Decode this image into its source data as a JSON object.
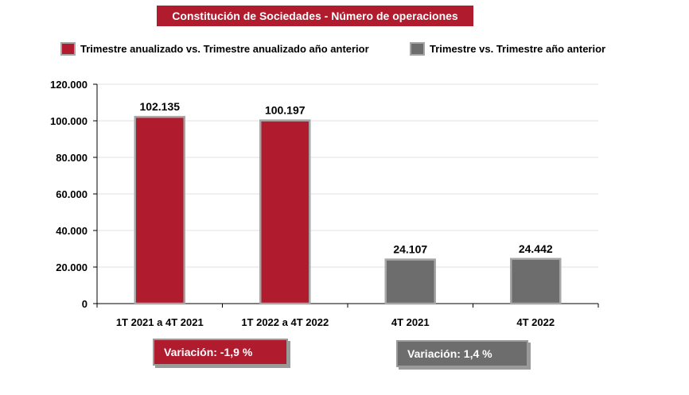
{
  "chart_data": {
    "type": "bar",
    "title": "Constitución de Sociedades - Número de operaciones",
    "categories": [
      "1T 2021 a 4T 2021",
      "1T 2022 a 4T 2022",
      "4T 2021",
      "4T 2022"
    ],
    "values": [
      102135,
      100197,
      24107,
      24442
    ],
    "value_labels": [
      "102.135",
      "100.197",
      "24.107",
      "24.442"
    ],
    "bar_series": [
      "annual",
      "annual",
      "quarter",
      "quarter"
    ],
    "series": [
      {
        "name": "Trimestre anualizado vs. Trimestre anualizado año anterior",
        "color": "#b01c2e"
      },
      {
        "name": "Trimestre vs. Trimestre año anterior",
        "color": "#6d6d6d"
      }
    ],
    "yticks": [
      0,
      20000,
      40000,
      60000,
      80000,
      100000,
      120000
    ],
    "ytick_labels": [
      "0",
      "20.000",
      "40.000",
      "60.000",
      "80.000",
      "100.000",
      "120.000"
    ],
    "ylim": [
      0,
      120000
    ],
    "xlabel": "",
    "ylabel": "",
    "grid": true,
    "legend_position": "top",
    "bar_edge_color": "#a6a6a6",
    "grid_color": "#e2e2e2"
  },
  "legend": {
    "annual_label": "Trimestre anualizado vs. Trimestre anualizado año anterior",
    "quarter_label": "Trimestre vs. Trimestre año anterior"
  },
  "variations": {
    "annual": "Variación:  -1,9 %",
    "quarter": "Variación: 1,4 %"
  }
}
